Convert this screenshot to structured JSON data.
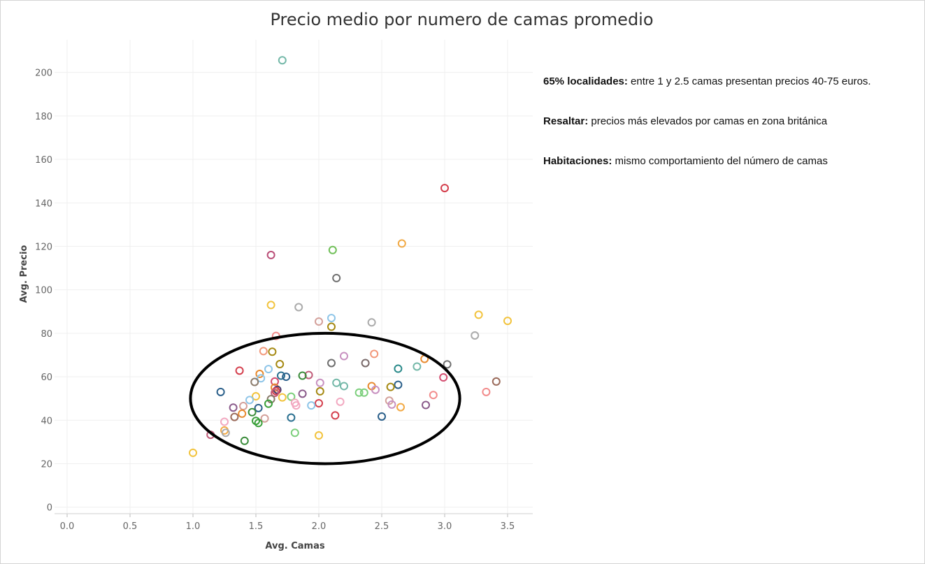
{
  "chart_data": {
    "type": "scatter",
    "title": "Precio medio por numero de camas promedio",
    "xlabel": "Avg. Camas",
    "ylabel": "Avg. Precio",
    "xlim": [
      -0.1,
      3.7
    ],
    "ylim": [
      -3,
      215
    ],
    "x_ticks": [
      "0.0",
      "0.5",
      "1.0",
      "1.5",
      "2.0",
      "2.5",
      "3.0",
      "3.5"
    ],
    "y_ticks": [
      "0",
      "20",
      "40",
      "60",
      "80",
      "100",
      "120",
      "140",
      "160",
      "180",
      "200"
    ],
    "grid": true,
    "marker": "hollow-circle",
    "annotation": {
      "shape": "ellipse",
      "center": [
        2.05,
        50
      ],
      "radius_x": 1.07,
      "radius_y": 30
    },
    "points": [
      {
        "x": 1.71,
        "y": 205.6,
        "color": "#73b8a8"
      },
      {
        "x": 3.0,
        "y": 146.8,
        "color": "#d43f4d"
      },
      {
        "x": 2.66,
        "y": 121.3,
        "color": "#f1a944"
      },
      {
        "x": 2.11,
        "y": 118.3,
        "color": "#6fbf57"
      },
      {
        "x": 1.62,
        "y": 116.0,
        "color": "#b94d77"
      },
      {
        "x": 2.14,
        "y": 105.4,
        "color": "#6e6e6e"
      },
      {
        "x": 1.62,
        "y": 93.0,
        "color": "#f2c33c"
      },
      {
        "x": 1.84,
        "y": 92.0,
        "color": "#aaaaaa"
      },
      {
        "x": 3.27,
        "y": 88.5,
        "color": "#f2c33c"
      },
      {
        "x": 2.1,
        "y": 87.0,
        "color": "#8ec5e8"
      },
      {
        "x": 3.5,
        "y": 85.7,
        "color": "#f2c33c"
      },
      {
        "x": 2.0,
        "y": 85.4,
        "color": "#d3a09a"
      },
      {
        "x": 2.42,
        "y": 85.0,
        "color": "#aaaaaa"
      },
      {
        "x": 2.1,
        "y": 83.0,
        "color": "#a58912"
      },
      {
        "x": 3.24,
        "y": 79.0,
        "color": "#aaaaaa"
      },
      {
        "x": 1.66,
        "y": 78.8,
        "color": "#f28b8b"
      },
      {
        "x": 1.56,
        "y": 71.8,
        "color": "#f2987a"
      },
      {
        "x": 1.63,
        "y": 71.5,
        "color": "#a58912"
      },
      {
        "x": 2.44,
        "y": 70.5,
        "color": "#f2987a"
      },
      {
        "x": 2.2,
        "y": 69.5,
        "color": "#c890c0"
      },
      {
        "x": 2.84,
        "y": 68.2,
        "color": "#e88a2e"
      },
      {
        "x": 2.1,
        "y": 66.3,
        "color": "#6e6e6e"
      },
      {
        "x": 2.37,
        "y": 66.3,
        "color": "#7a6a6a"
      },
      {
        "x": 1.69,
        "y": 65.8,
        "color": "#a58912"
      },
      {
        "x": 3.02,
        "y": 65.7,
        "color": "#6e6e6e"
      },
      {
        "x": 2.78,
        "y": 64.7,
        "color": "#73b8a8"
      },
      {
        "x": 2.63,
        "y": 63.7,
        "color": "#2a8a8a"
      },
      {
        "x": 1.6,
        "y": 63.5,
        "color": "#8ec5e8"
      },
      {
        "x": 1.37,
        "y": 62.8,
        "color": "#d43f4d"
      },
      {
        "x": 1.53,
        "y": 61.3,
        "color": "#e88a2e"
      },
      {
        "x": 1.92,
        "y": 60.8,
        "color": "#c05d7a"
      },
      {
        "x": 1.87,
        "y": 60.5,
        "color": "#3a8c3a"
      },
      {
        "x": 1.7,
        "y": 60.5,
        "color": "#2a7090"
      },
      {
        "x": 1.74,
        "y": 60.0,
        "color": "#2a5f8a"
      },
      {
        "x": 2.99,
        "y": 59.7,
        "color": "#d44d70"
      },
      {
        "x": 1.54,
        "y": 59.3,
        "color": "#8ec5e8"
      },
      {
        "x": 3.41,
        "y": 57.8,
        "color": "#9a6a5a"
      },
      {
        "x": 1.65,
        "y": 57.8,
        "color": "#d44d70"
      },
      {
        "x": 1.49,
        "y": 57.6,
        "color": "#8a7a6a"
      },
      {
        "x": 2.01,
        "y": 57.2,
        "color": "#c890c0"
      },
      {
        "x": 2.14,
        "y": 57.2,
        "color": "#73b8a8"
      },
      {
        "x": 2.63,
        "y": 56.3,
        "color": "#2a5f8a"
      },
      {
        "x": 2.2,
        "y": 55.7,
        "color": "#73b8a8"
      },
      {
        "x": 2.42,
        "y": 55.7,
        "color": "#e88a2e"
      },
      {
        "x": 2.57,
        "y": 55.3,
        "color": "#a58912"
      },
      {
        "x": 1.65,
        "y": 55.0,
        "color": "#e88a2e"
      },
      {
        "x": 1.67,
        "y": 54.0,
        "color": "#4a3a6a"
      },
      {
        "x": 2.45,
        "y": 54.0,
        "color": "#c890c0"
      },
      {
        "x": 1.66,
        "y": 53.4,
        "color": "#d43f4d"
      },
      {
        "x": 2.01,
        "y": 53.3,
        "color": "#a58912"
      },
      {
        "x": 1.22,
        "y": 53.0,
        "color": "#2a5f8a"
      },
      {
        "x": 3.33,
        "y": 53.0,
        "color": "#f28b8b"
      },
      {
        "x": 1.65,
        "y": 52.6,
        "color": "#c05d7a"
      },
      {
        "x": 2.32,
        "y": 52.7,
        "color": "#7ccf7c"
      },
      {
        "x": 2.36,
        "y": 52.7,
        "color": "#7ccf7c"
      },
      {
        "x": 1.87,
        "y": 52.2,
        "color": "#8a5a8a"
      },
      {
        "x": 2.91,
        "y": 51.6,
        "color": "#f28b8b"
      },
      {
        "x": 1.5,
        "y": 51.0,
        "color": "#f2c33c"
      },
      {
        "x": 1.71,
        "y": 50.5,
        "color": "#f2c33c"
      },
      {
        "x": 1.78,
        "y": 50.8,
        "color": "#7ccf7c"
      },
      {
        "x": 1.62,
        "y": 49.7,
        "color": "#8a7a6a"
      },
      {
        "x": 1.45,
        "y": 49.3,
        "color": "#8ec5e8"
      },
      {
        "x": 2.56,
        "y": 49.0,
        "color": "#d3a09a"
      },
      {
        "x": 2.17,
        "y": 48.5,
        "color": "#f2a8c0"
      },
      {
        "x": 1.81,
        "y": 48.0,
        "color": "#f2a8c0"
      },
      {
        "x": 2.0,
        "y": 47.8,
        "color": "#d43f4d"
      },
      {
        "x": 1.6,
        "y": 47.6,
        "color": "#3aa03a"
      },
      {
        "x": 2.58,
        "y": 47.2,
        "color": "#c890c0"
      },
      {
        "x": 2.85,
        "y": 47.0,
        "color": "#8a5a8a"
      },
      {
        "x": 1.82,
        "y": 46.8,
        "color": "#f2a8c0"
      },
      {
        "x": 1.94,
        "y": 46.8,
        "color": "#8ec5e8"
      },
      {
        "x": 1.4,
        "y": 46.5,
        "color": "#d3a09a"
      },
      {
        "x": 2.65,
        "y": 46.0,
        "color": "#f2a944"
      },
      {
        "x": 1.32,
        "y": 45.8,
        "color": "#8a5a8a"
      },
      {
        "x": 1.52,
        "y": 45.6,
        "color": "#2a5f8a"
      },
      {
        "x": 1.47,
        "y": 43.7,
        "color": "#3a8c3a"
      },
      {
        "x": 1.39,
        "y": 43.0,
        "color": "#e88a2e"
      },
      {
        "x": 2.13,
        "y": 42.2,
        "color": "#d43f4d"
      },
      {
        "x": 1.33,
        "y": 41.5,
        "color": "#9a6a5a"
      },
      {
        "x": 2.5,
        "y": 41.7,
        "color": "#2a5f8a"
      },
      {
        "x": 1.78,
        "y": 41.2,
        "color": "#2a7090"
      },
      {
        "x": 1.57,
        "y": 40.8,
        "color": "#d3a09a"
      },
      {
        "x": 1.5,
        "y": 39.7,
        "color": "#3aa03a"
      },
      {
        "x": 1.25,
        "y": 39.3,
        "color": "#f2a8c0"
      },
      {
        "x": 1.52,
        "y": 38.7,
        "color": "#3aa03a"
      },
      {
        "x": 1.25,
        "y": 35.3,
        "color": "#f2a944"
      },
      {
        "x": 1.26,
        "y": 34.2,
        "color": "#aaaaaa"
      },
      {
        "x": 1.81,
        "y": 34.2,
        "color": "#7ccf7c"
      },
      {
        "x": 1.14,
        "y": 33.3,
        "color": "#c05d7a"
      },
      {
        "x": 2.0,
        "y": 33.0,
        "color": "#f2c33c"
      },
      {
        "x": 1.41,
        "y": 30.5,
        "color": "#3a8c3a"
      },
      {
        "x": 1.0,
        "y": 25.0,
        "color": "#f2c33c"
      }
    ]
  },
  "notes": [
    {
      "label": "65% localidades:",
      "text": " entre 1 y 2.5 camas presentan precios 40-75 euros."
    },
    {
      "label": "Resaltar:",
      "text": " precios más elevados por camas en zona británica"
    },
    {
      "label": "Habitaciones:",
      "text": " mismo comportamiento del número de camas"
    }
  ]
}
